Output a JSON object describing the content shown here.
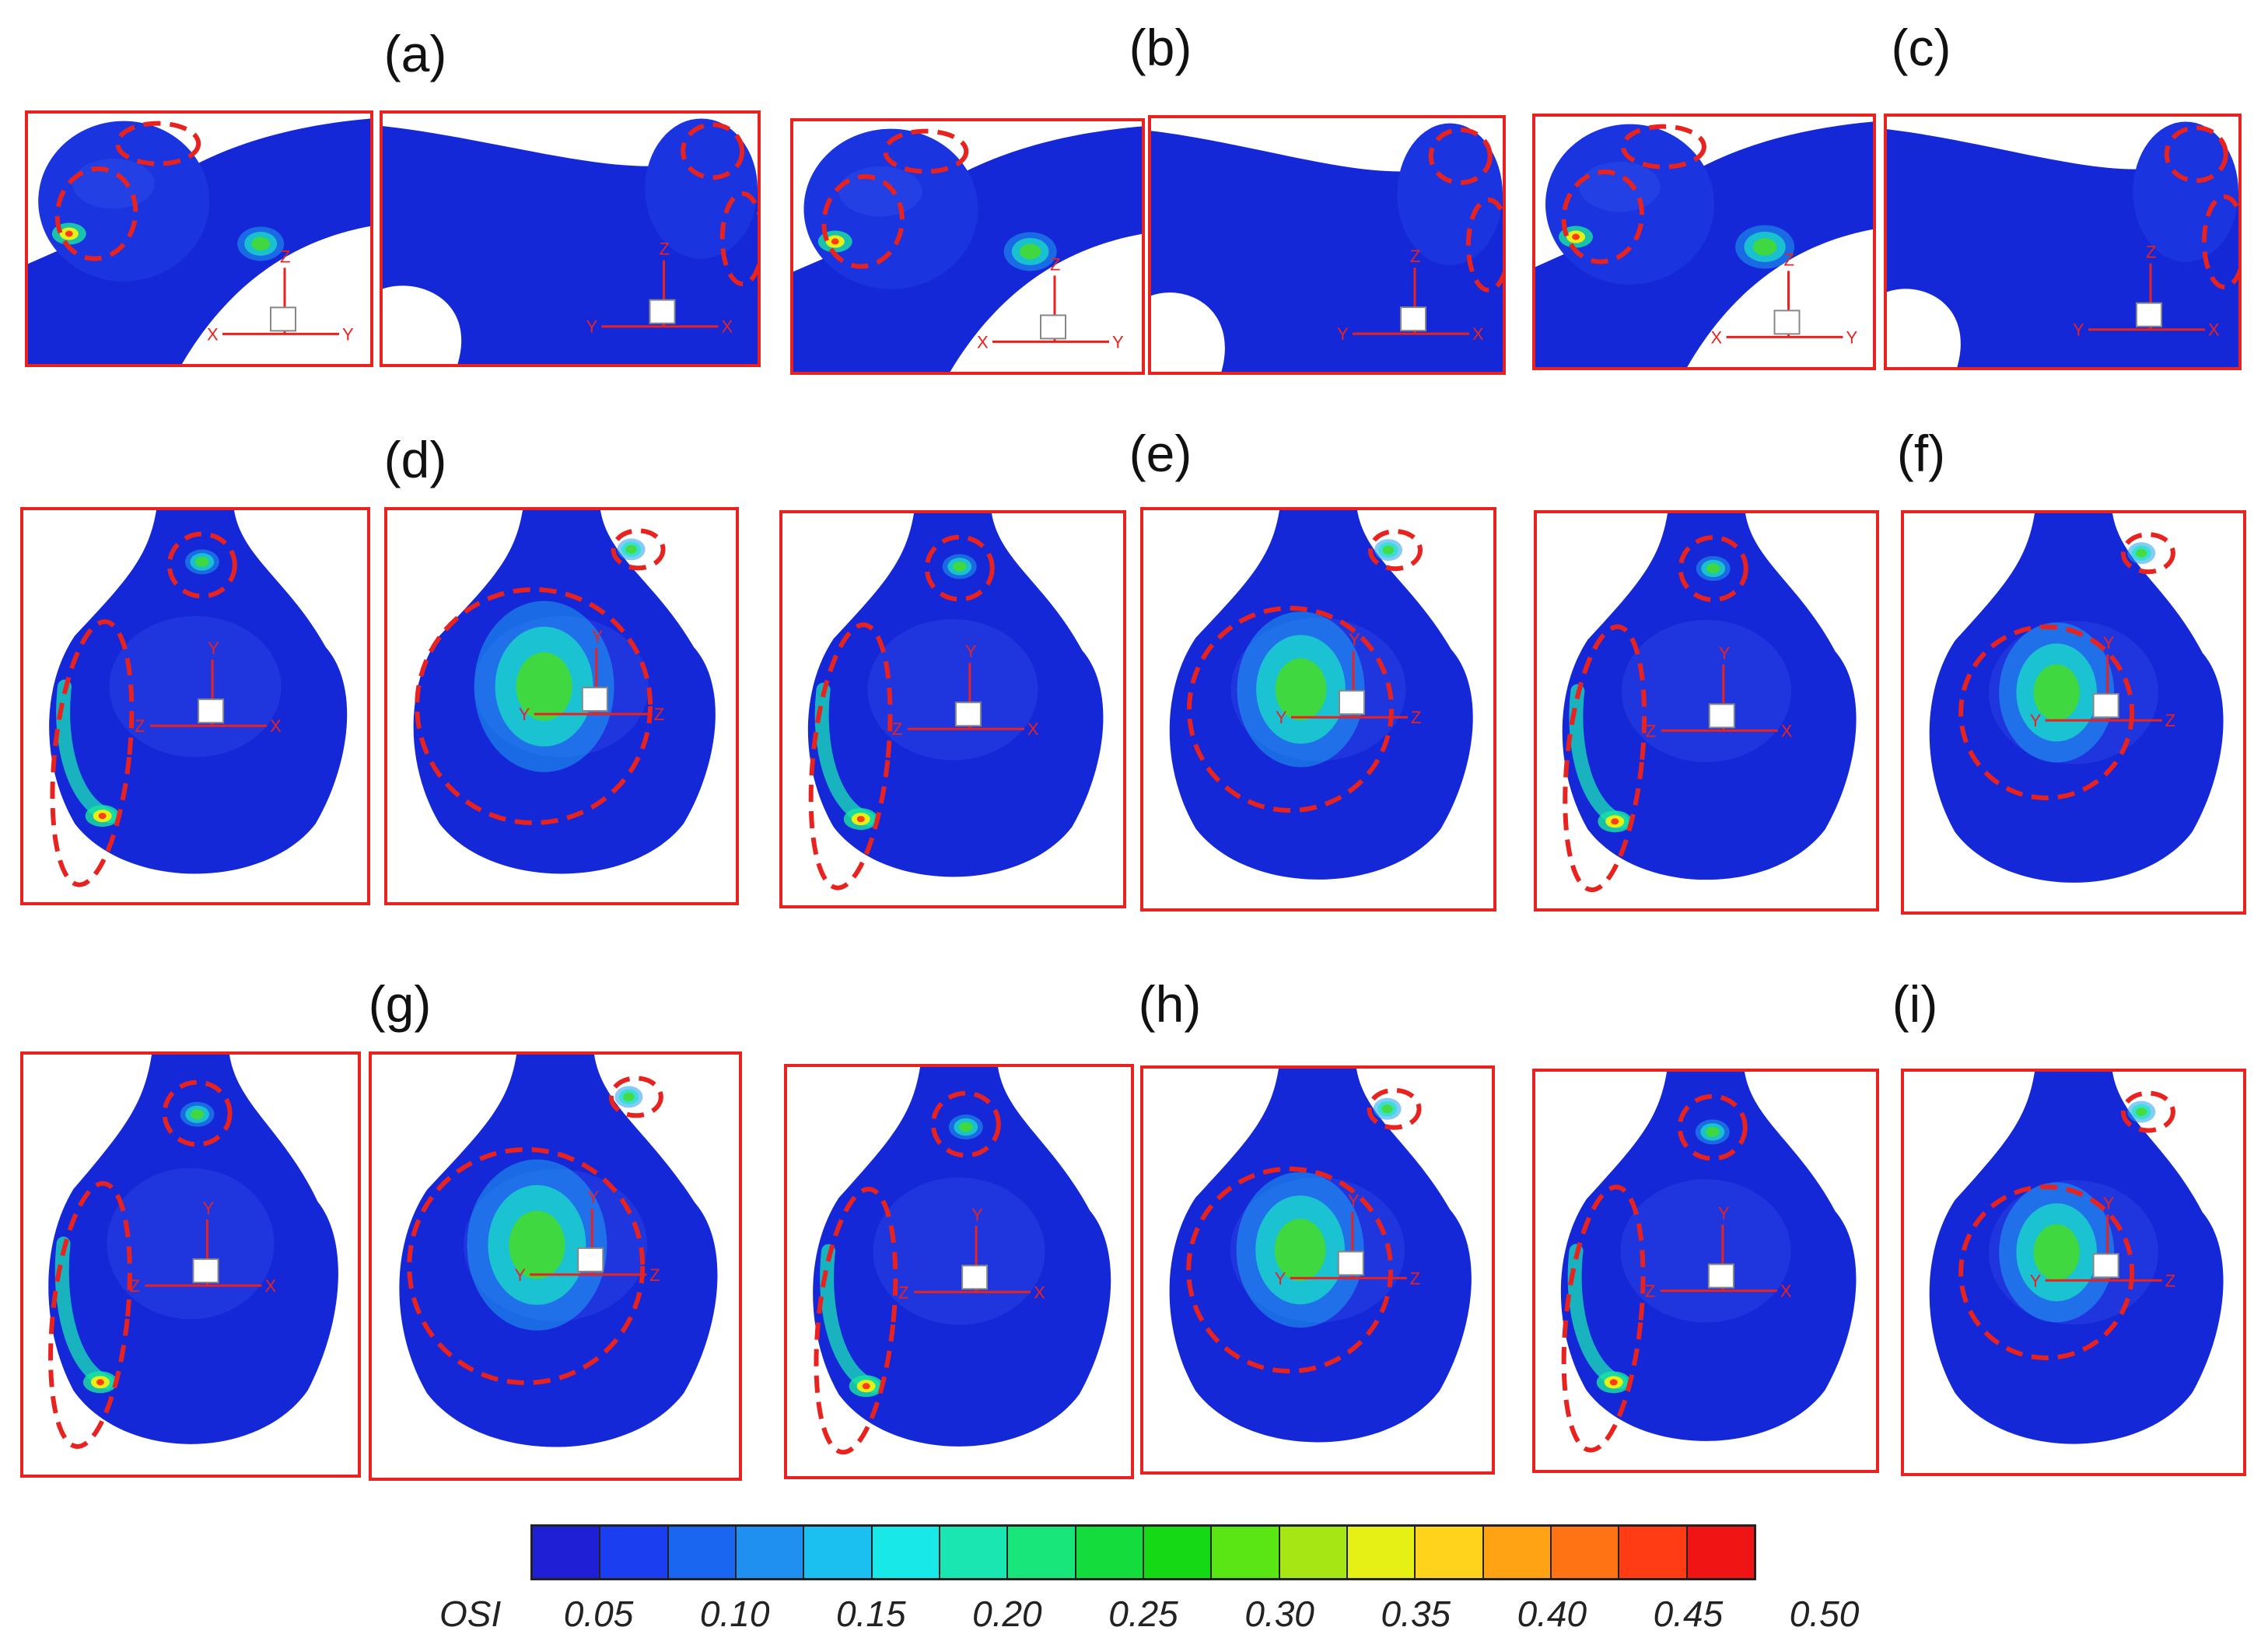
{
  "panels": [
    {
      "id": "a",
      "label": "(a)",
      "view": "sac-top"
    },
    {
      "id": "b",
      "label": "(b)",
      "view": "sac-top"
    },
    {
      "id": "c",
      "label": "(c)",
      "view": "sac-top"
    },
    {
      "id": "d",
      "label": "(d)",
      "view": "dome"
    },
    {
      "id": "e",
      "label": "(e)",
      "view": "dome"
    },
    {
      "id": "f",
      "label": "(f)",
      "view": "dome"
    },
    {
      "id": "g",
      "label": "(g)",
      "view": "dome"
    },
    {
      "id": "h",
      "label": "(h)",
      "view": "dome"
    },
    {
      "id": "i",
      "label": "(i)",
      "view": "dome"
    }
  ],
  "axes_labels": {
    "x": "X",
    "y": "Y",
    "z": "Z"
  },
  "colorbar": {
    "title": "OSI",
    "ticks": [
      "0.05",
      "0.10",
      "0.15",
      "0.20",
      "0.25",
      "0.30",
      "0.35",
      "0.40",
      "0.45",
      "0.50"
    ],
    "colors": [
      "#1f1fd6",
      "#1a3ef0",
      "#1a66f0",
      "#1f8ff0",
      "#1cc0f0",
      "#19e8e8",
      "#19e6b0",
      "#19e67a",
      "#14dc3c",
      "#14d914",
      "#5ae614",
      "#a6e614",
      "#e6f014",
      "#ffd21c",
      "#ffa314",
      "#ff7314",
      "#ff3c14",
      "#f01414"
    ]
  },
  "colors": {
    "frame": "#e8231f",
    "surface": "#1428d8",
    "annotation": "#e8231f"
  }
}
